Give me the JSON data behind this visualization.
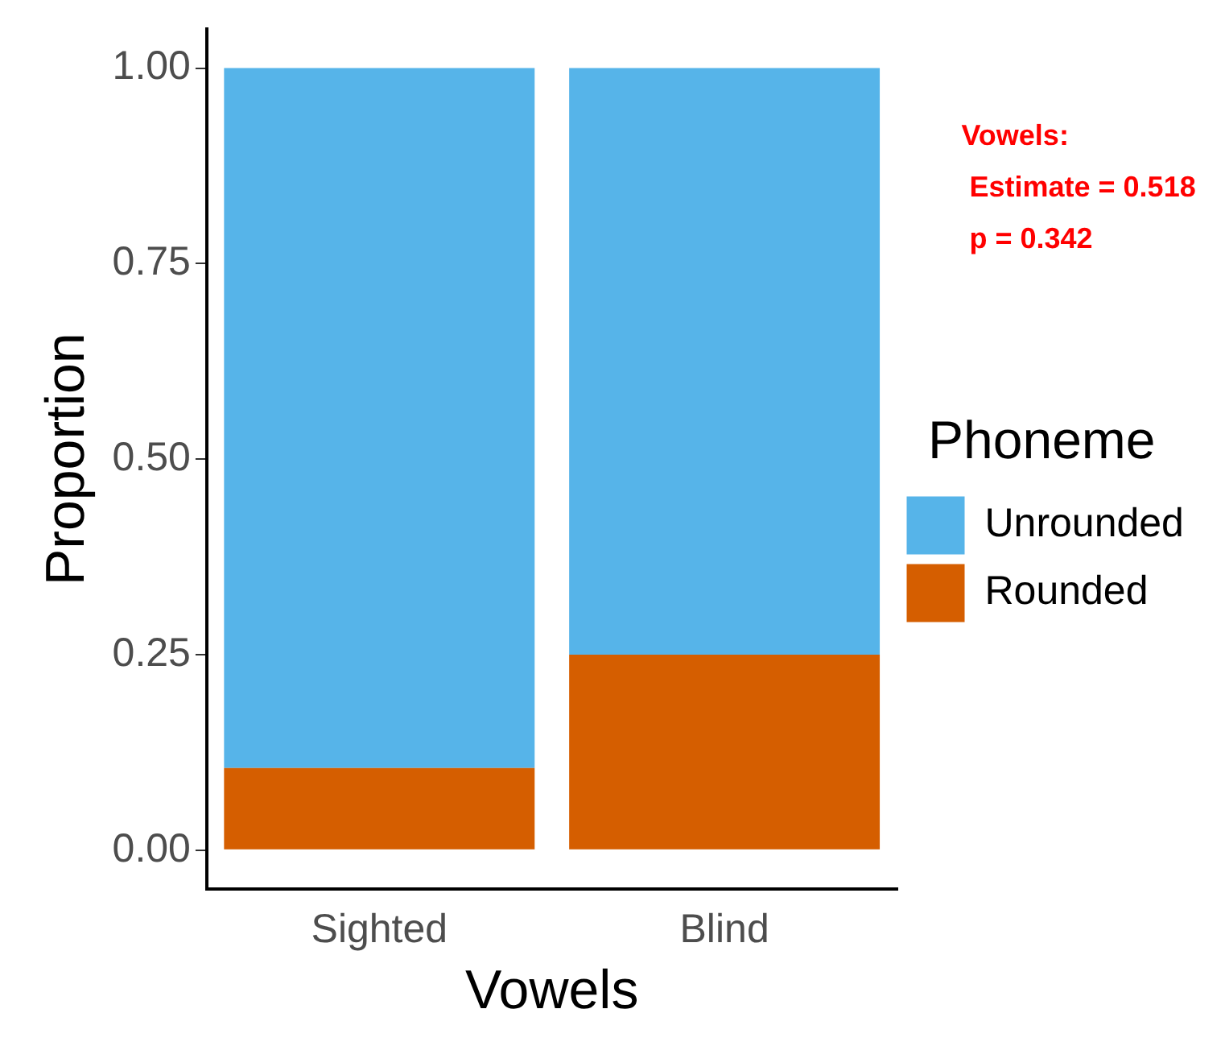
{
  "chart_data": {
    "type": "bar",
    "stacked": true,
    "xlabel": "Vowels",
    "ylabel": "Proportion",
    "legend_title": "Phoneme",
    "legend": "right",
    "categories": [
      "Sighted",
      "Blind"
    ],
    "series": [
      {
        "name": "Rounded",
        "color": "#d55e00",
        "values": [
          0.105,
          0.25
        ]
      },
      {
        "name": "Unrounded",
        "color": "#56b4e9",
        "values": [
          0.895,
          0.75
        ]
      }
    ],
    "ylim": [
      -0.05,
      1.05
    ],
    "yticks": [
      {
        "value": 0,
        "label": "0.00"
      },
      {
        "value": 0.25,
        "label": "0.25"
      },
      {
        "value": 0.5,
        "label": "0.50"
      },
      {
        "value": 0.75,
        "label": "0.75"
      },
      {
        "value": 1,
        "label": "1.00"
      }
    ],
    "grid": false,
    "annotations": [
      "Vowels:\n Estimate = 0.518\n p = 0.342"
    ]
  }
}
